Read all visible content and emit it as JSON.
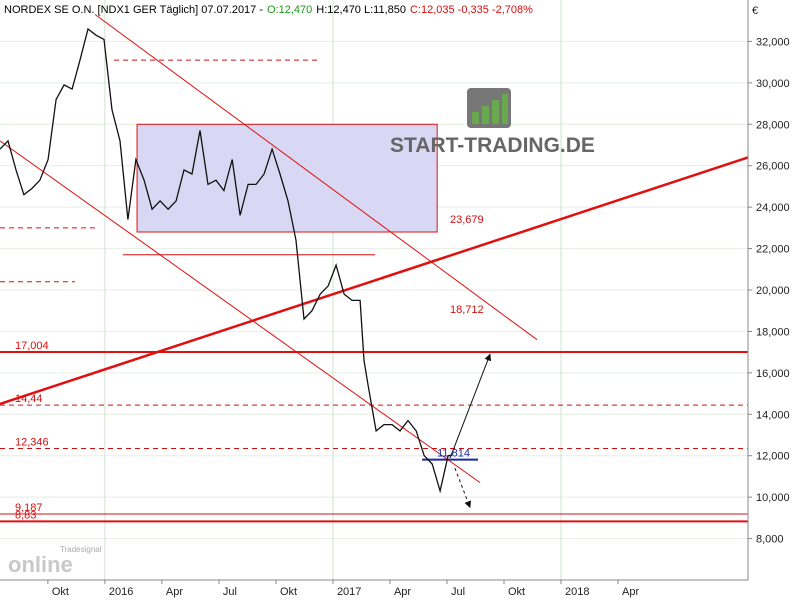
{
  "chart_data": {
    "type": "line",
    "header": [
      {
        "text": "NORDEX SE O.N. [NDX1 GER  Täglich] 07.07.2017 -",
        "color": "#000000"
      },
      {
        "text": "O:12,470",
        "color": "#1a9a1a"
      },
      {
        "text": "H:12,470 L:11,850",
        "color": "#000000"
      },
      {
        "text": "C:12,035 -0,335 -2,708%",
        "color": "#d01010"
      }
    ],
    "currency": "€",
    "logo": "START-TRADING.DE",
    "watermark": [
      "Tradesignal",
      "online"
    ],
    "xlim": [
      2015.54,
      2018.82
    ],
    "ylim": [
      6000,
      34000
    ],
    "grid": true,
    "xticks": [
      {
        "value": 2015.75,
        "label": "Okt"
      },
      2016,
      {
        "value": 2016.25,
        "label": "Apr"
      },
      {
        "value": 2016.5,
        "label": "Jul"
      },
      {
        "value": 2016.75,
        "label": "Okt"
      },
      2017,
      {
        "value": 2017.25,
        "label": "Apr"
      },
      {
        "value": 2017.5,
        "label": "Jul"
      },
      {
        "value": 2017.75,
        "label": "Okt"
      },
      2018,
      {
        "value": 2018.25,
        "label": "Apr"
      }
    ],
    "yticks": [
      {
        "value": 8000,
        "label": "8,000"
      },
      {
        "value": 10000,
        "label": "10,000"
      },
      {
        "value": 12000,
        "label": "12,000"
      },
      {
        "value": 14000,
        "label": "14,000"
      },
      {
        "value": 16000,
        "label": "16,000"
      },
      {
        "value": 18000,
        "label": "18,000"
      },
      {
        "value": 20000,
        "label": "20,000"
      },
      {
        "value": 22000,
        "label": "22,000"
      },
      {
        "value": 24000,
        "label": "24,000"
      },
      {
        "value": 26000,
        "label": "26,000"
      },
      {
        "value": 28000,
        "label": "28,000"
      },
      {
        "value": 30000,
        "label": "30,000"
      },
      {
        "value": 32000,
        "label": "32,000"
      }
    ],
    "series": [
      {
        "name": "NORDEX SE O.N.",
        "color": "#111111",
        "x": [
          2015.54,
          2015.575,
          2015.61,
          2015.645,
          2015.68,
          2015.715,
          2015.751,
          2015.786,
          2015.821,
          2015.856,
          2015.891,
          2015.926,
          2015.961,
          2015.996,
          2016.031,
          2016.066,
          2016.101,
          2016.136,
          2016.172,
          2016.207,
          2016.242,
          2016.277,
          2016.312,
          2016.347,
          2016.382,
          2016.417,
          2016.452,
          2016.487,
          2016.522,
          2016.558,
          2016.593,
          2016.628,
          2016.663,
          2016.698,
          2016.733,
          2016.768,
          2016.803,
          2016.838,
          2016.873,
          2016.908,
          2016.944,
          2016.979,
          2017.014,
          2017.049,
          2017.084,
          2017.119,
          2017.136,
          2017.154,
          2017.189,
          2017.224,
          2017.259,
          2017.294,
          2017.329,
          2017.365,
          2017.4,
          2017.435,
          2017.47,
          2017.505,
          2017.522
        ],
        "values": [
          26800,
          27200,
          25800,
          24600,
          24900,
          25300,
          26300,
          29200,
          29900,
          29700,
          31100,
          32600,
          32300,
          32100,
          28700,
          27200,
          23400,
          26300,
          25300,
          23900,
          24300,
          23900,
          24300,
          25800,
          25600,
          27700,
          25100,
          25300,
          24800,
          26300,
          23600,
          25100,
          25100,
          25600,
          26800,
          25600,
          24300,
          22400,
          18600,
          19000,
          19800,
          20200,
          21200,
          19800,
          19500,
          19500,
          16600,
          15400,
          13200,
          13500,
          13500,
          13200,
          13700,
          13200,
          12000,
          11600,
          10300,
          12000,
          12035
        ]
      }
    ],
    "box": {
      "x": [
        2016.141,
        2017.457
      ],
      "y": [
        22800,
        28000
      ],
      "color": "#d8d8f4"
    },
    "levels": [
      {
        "x": [
          2016.04,
          2016.94
        ],
        "value": 31100,
        "style": "dashed",
        "width": 1,
        "color": "#d01010"
      },
      {
        "x": [
          2015.54,
          2015.957
        ],
        "value": 23000,
        "style": "dashed",
        "width": 1,
        "color": "#d01010"
      },
      {
        "x": [
          2015.54,
          2015.869
        ],
        "value": 20400,
        "style": "dashed",
        "width": 1,
        "color": "#d01010"
      },
      {
        "x": [
          2016.079,
          2017.185
        ],
        "value": 21700,
        "style": "solid",
        "width": 1,
        "color": "#d01010"
      },
      {
        "x": [
          2015.54,
          2018.82
        ],
        "value": 17004,
        "label": "17,004",
        "style": "solid",
        "width": 2,
        "color": "#e01010"
      },
      {
        "x": [
          2015.54,
          2018.82
        ],
        "value": 14440,
        "label": "14,44",
        "style": "dashed",
        "width": 1,
        "color": "#d01010"
      },
      {
        "x": [
          2015.54,
          2018.82
        ],
        "value": 12346,
        "label": "12,346",
        "style": "dashed",
        "width": 1,
        "color": "#d01010"
      },
      {
        "x": [
          2015.54,
          2018.82
        ],
        "value": 9187,
        "label": "9,187",
        "style": "solid",
        "width": 1,
        "color": "#d01010"
      },
      {
        "x": [
          2015.54,
          2018.82
        ],
        "value": 8830,
        "label": "8,83",
        "style": "solid",
        "width": 2,
        "color": "#e01010"
      },
      {
        "x": [
          2017.391,
          2017.636
        ],
        "value": 11814,
        "label": "11,814",
        "style": "solid",
        "width": 2,
        "color": "#1a2aa0"
      }
    ],
    "trendlines": [
      {
        "x": [
          2015.54,
          2018.82
        ],
        "y": [
          14500,
          26400
        ],
        "width": 2.5,
        "color": "#e01010"
      },
      {
        "x": [
          2015.957,
          2017.895
        ],
        "y": [
          33300,
          17600
        ],
        "width": 1,
        "color": "#e01010"
      },
      {
        "x": [
          2015.54,
          2017.645
        ],
        "y": [
          27200,
          10700
        ],
        "width": 1,
        "color": "#e01010"
      }
    ],
    "arrows": [
      {
        "x": [
          2017.514,
          2017.689
        ],
        "y": [
          11900,
          16900
        ],
        "style": "solid"
      },
      {
        "x": [
          2017.535,
          2017.601
        ],
        "y": [
          11400,
          9500
        ],
        "style": "dotted"
      }
    ],
    "annotations": [
      {
        "text": "23,679"
      },
      {
        "text": "18,712"
      }
    ]
  }
}
